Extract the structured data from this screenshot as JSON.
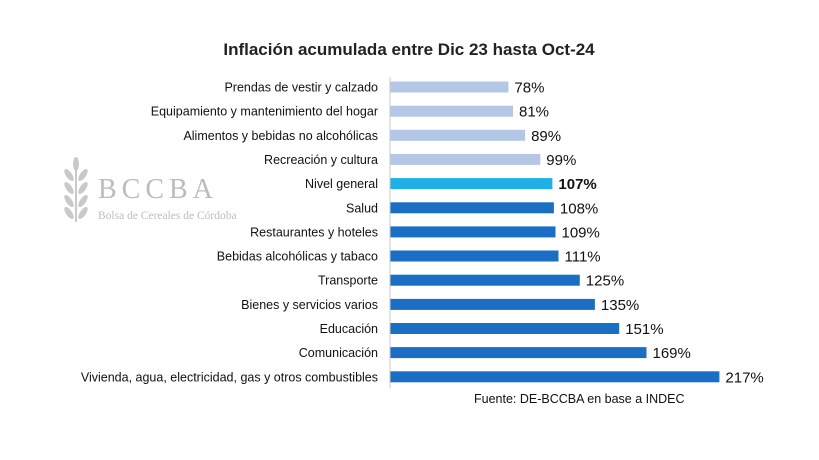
{
  "chart_data": {
    "type": "bar",
    "orientation": "horizontal",
    "title": "Inflación acumulada entre Dic 23 hasta Oct-24",
    "categories": [
      "Prendas de vestir y calzado",
      "Equipamiento y mantenimiento del hogar",
      "Alimentos y bebidas no alcohólicas",
      "Recreación y cultura",
      "Nivel general",
      "Salud",
      "Restaurantes y hoteles",
      "Bebidas alcohólicas y tabaco",
      "Transporte",
      "Bienes y servicios varios",
      "Educación",
      "Comunicación",
      "Vivienda, agua, electricidad, gas y otros combustibles"
    ],
    "values": [
      78,
      81,
      89,
      99,
      107,
      108,
      109,
      111,
      125,
      135,
      151,
      169,
      217
    ],
    "value_labels": [
      "78%",
      "81%",
      "89%",
      "99%",
      "107%",
      "108%",
      "109%",
      "111%",
      "125%",
      "135%",
      "151%",
      "169%",
      "217%"
    ],
    "unit": "%",
    "highlight_index": 4,
    "colors": {
      "light": "#b4c7e7",
      "highlight": "#1fb0e8",
      "dark": "#1a6fc4",
      "axis": "#c8c8c8"
    },
    "grid": false,
    "legend": "none"
  },
  "source": "Fuente: DE-BCCBA en base a INDEC",
  "logo": {
    "name": "BCCBA",
    "subtitle": "Bolsa de Cereales de Córdoba",
    "icon": "wheat-icon"
  }
}
